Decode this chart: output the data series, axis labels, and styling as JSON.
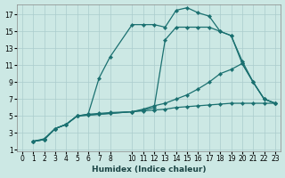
{
  "xlabel": "Humidex (Indice chaleur)",
  "bg_color": "#cce8e4",
  "grid_color": "#aacccc",
  "line_color": "#1a7070",
  "xlim": [
    -0.5,
    23.5
  ],
  "ylim": [
    0.8,
    18.2
  ],
  "xticks": [
    0,
    1,
    2,
    3,
    4,
    5,
    6,
    7,
    8,
    10,
    11,
    12,
    13,
    14,
    15,
    16,
    17,
    18,
    19,
    20,
    21,
    22,
    23
  ],
  "yticks": [
    1,
    3,
    5,
    7,
    9,
    11,
    13,
    15,
    17
  ],
  "line1_x": [
    1,
    2,
    3,
    4,
    5,
    6,
    7,
    8,
    10,
    11,
    12,
    13,
    14,
    15,
    16,
    17,
    18,
    19,
    20,
    21,
    22,
    23
  ],
  "line1_y": [
    2,
    2.2,
    3.5,
    4.0,
    5.0,
    5.2,
    5.3,
    5.4,
    5.5,
    5.6,
    5.7,
    5.8,
    6.0,
    6.1,
    6.2,
    6.3,
    6.4,
    6.5,
    6.5,
    6.5,
    6.5,
    6.5
  ],
  "line2_x": [
    1,
    2,
    3,
    4,
    5,
    6,
    7,
    8,
    10,
    11,
    12,
    13,
    14,
    15,
    16,
    17,
    18,
    19,
    20,
    21,
    22,
    23
  ],
  "line2_y": [
    2,
    2.3,
    3.5,
    4.0,
    5.0,
    5.2,
    9.5,
    12.0,
    15.8,
    15.8,
    15.8,
    15.5,
    17.5,
    17.8,
    17.2,
    16.8,
    15.0,
    14.5,
    11.2,
    9.0,
    7.0,
    6.5
  ],
  "line3_x": [
    1,
    2,
    3,
    4,
    5,
    6,
    7,
    8,
    10,
    11,
    12,
    13,
    14,
    15,
    16,
    17,
    18,
    19,
    20,
    21,
    22,
    23
  ],
  "line3_y": [
    2,
    2.2,
    3.5,
    4.0,
    5.0,
    5.1,
    5.2,
    5.3,
    5.5,
    5.7,
    6.0,
    14.0,
    15.5,
    15.5,
    15.5,
    15.5,
    15.0,
    14.5,
    11.5,
    9.0,
    7.0,
    6.5
  ],
  "line4_x": [
    1,
    2,
    3,
    4,
    5,
    6,
    7,
    8,
    10,
    11,
    12,
    13,
    14,
    15,
    16,
    17,
    18,
    19,
    20,
    21,
    22,
    23
  ],
  "line4_y": [
    2,
    2.2,
    3.5,
    4.0,
    5.0,
    5.1,
    5.2,
    5.3,
    5.5,
    5.8,
    6.2,
    6.5,
    7.0,
    7.5,
    8.2,
    9.0,
    10.0,
    10.5,
    11.2,
    9.0,
    7.0,
    6.5
  ],
  "tick_fontsize": 5.5,
  "xlabel_fontsize": 6.5,
  "linewidth": 0.9,
  "markersize": 2.2
}
